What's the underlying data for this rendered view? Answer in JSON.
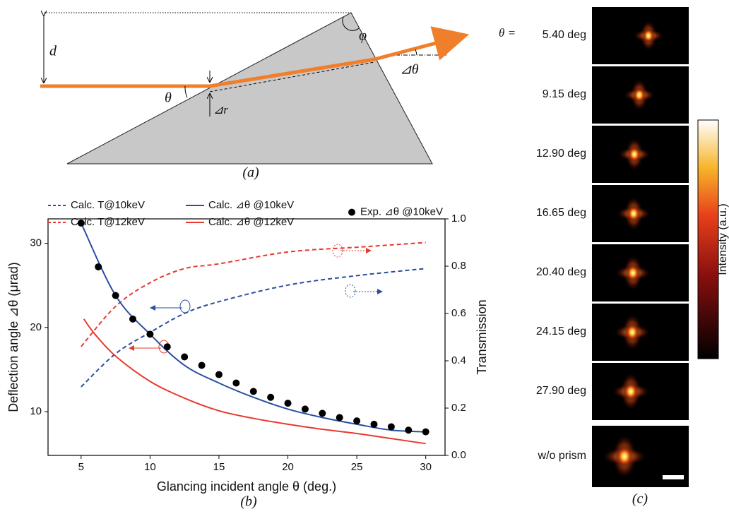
{
  "panel_a": {
    "labels": {
      "d": "d",
      "phi": "φ",
      "theta": "θ",
      "delta_r": "⊿r",
      "delta_theta": "⊿θ"
    },
    "caption": "(a)"
  },
  "chart_data": {
    "type": "line",
    "caption": "(b)",
    "xlabel": "Glancing incident angle θ (deg.)",
    "ylabel": "Deflection angle ⊿θ (μrad)",
    "y2label": "Transmission",
    "xlim": [
      2.6,
      31.4
    ],
    "xticks": [
      5,
      10,
      15,
      20,
      25,
      30
    ],
    "ylim": [
      4.8,
      32.9
    ],
    "yticks": [
      10,
      20,
      30
    ],
    "y2lim": [
      0,
      1
    ],
    "y2ticks": [
      {
        "value": 0,
        "label": "0.0"
      },
      0.2,
      0.4,
      0.6,
      0.8,
      {
        "value": 1,
        "label": "1.0"
      }
    ],
    "series": [
      {
        "name": "Calc. T@10keV",
        "color": "#2a4ea0",
        "style": "dashed",
        "axis": "y2",
        "x": [
          5,
          7.5,
          10,
          12.5,
          15,
          20,
          25,
          30
        ],
        "values": [
          0.29,
          0.43,
          0.52,
          0.6,
          0.65,
          0.72,
          0.76,
          0.79
        ]
      },
      {
        "name": "Calc. T@12keV",
        "color": "#e8392e",
        "style": "dashed",
        "axis": "y2",
        "x": [
          5,
          7.5,
          10,
          12.5,
          15,
          20,
          25,
          30
        ],
        "values": [
          0.46,
          0.63,
          0.73,
          0.79,
          0.81,
          0.86,
          0.88,
          0.9
        ]
      },
      {
        "name": "Calc. ⊿θ @10keV",
        "color": "#2a4ea0",
        "style": "solid",
        "x": [
          5,
          7.5,
          10,
          12.5,
          15,
          17.5,
          20,
          22.5,
          25,
          27.5,
          30
        ],
        "values": [
          32.4,
          23.8,
          19.2,
          15.5,
          13.4,
          11.7,
          10.3,
          9.3,
          8.5,
          7.8,
          7.6
        ]
      },
      {
        "name": "Calc. ⊿θ @12keV",
        "color": "#e8392e",
        "style": "solid",
        "x": [
          5.2,
          6,
          7.5,
          10,
          12.5,
          15,
          17.5,
          20,
          22.5,
          25,
          27.5,
          30
        ],
        "values": [
          21.0,
          19.2,
          16.6,
          13.6,
          11.6,
          10.1,
          9.2,
          8.5,
          7.9,
          7.4,
          6.8,
          6.2
        ]
      },
      {
        "name": "Exp. ⊿θ @10keV",
        "color": "#000000",
        "style": "markers",
        "x": [
          5,
          6.25,
          7.5,
          8.75,
          10,
          11.25,
          12.5,
          13.75,
          15,
          16.25,
          17.5,
          18.75,
          20,
          21.25,
          22.5,
          23.75,
          25,
          26.25,
          27.5,
          28.75,
          30
        ],
        "values": [
          32.4,
          27.2,
          23.8,
          21.0,
          19.2,
          17.7,
          16.5,
          15.5,
          14.4,
          13.4,
          12.4,
          11.7,
          11.0,
          10.3,
          9.8,
          9.3,
          8.9,
          8.5,
          8.2,
          7.8,
          7.6
        ]
      }
    ]
  },
  "panel_c": {
    "theta_label": "θ =",
    "angles": [
      "5.40 deg",
      "9.15 deg",
      "12.90 deg",
      "16.65 deg",
      "20.40 deg",
      "24.15 deg",
      "27.90 deg"
    ],
    "reference": "w/o prism",
    "colorbar_label": "Intensity (a.u.)",
    "caption": "(c)"
  }
}
